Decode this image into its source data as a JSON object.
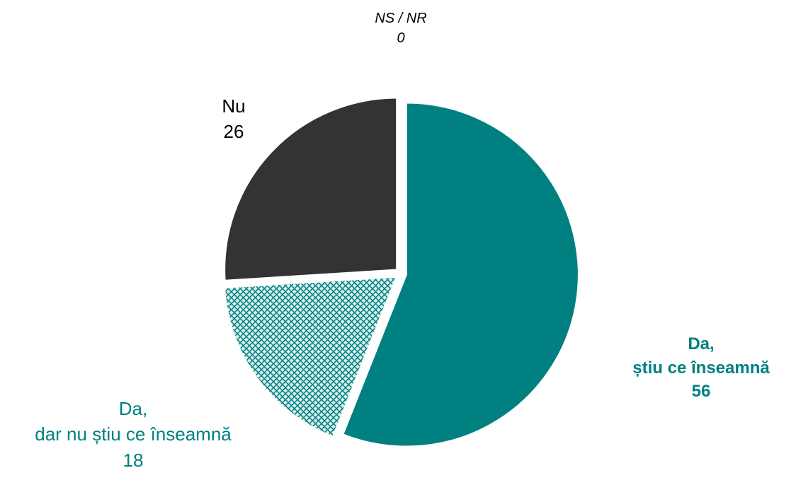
{
  "chart_data": {
    "type": "pie",
    "categories": [
      "Da, știu ce înseamnă",
      "Da, dar nu știu ce înseamnă",
      "Nu",
      "NS / NR"
    ],
    "values": [
      56,
      18,
      26,
      0
    ],
    "colors": [
      "#008080",
      "#008080",
      "#333333",
      "#7f7f7f"
    ]
  }
}
